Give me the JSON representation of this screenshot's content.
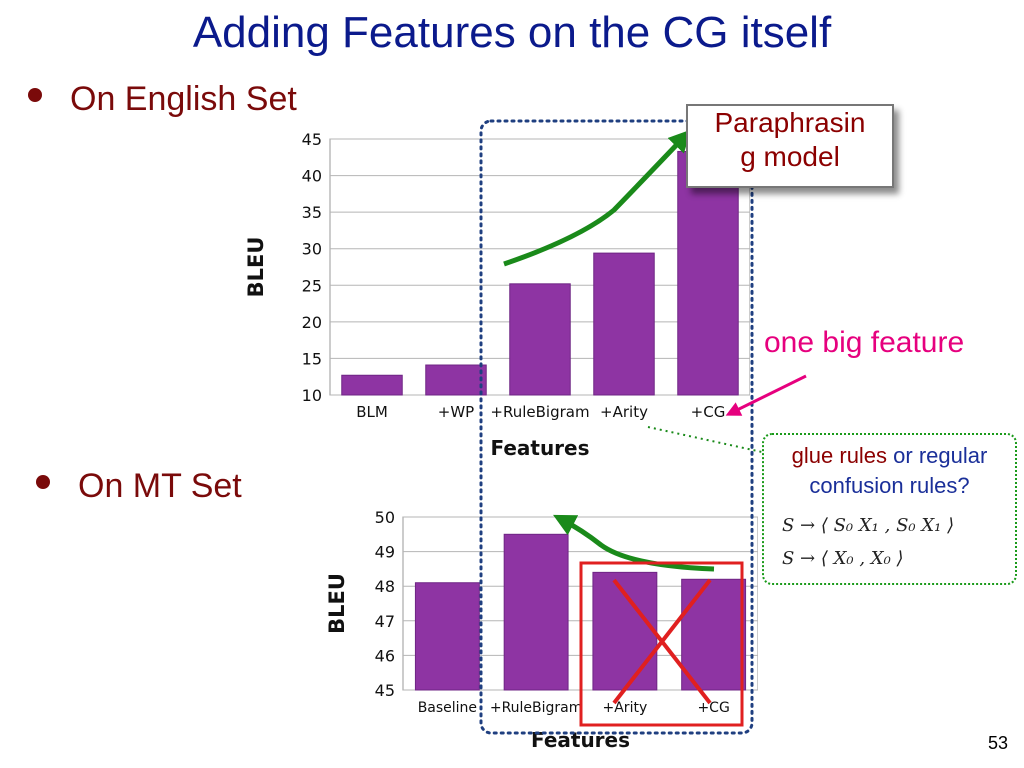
{
  "slide": {
    "title": "Adding Features on the CG itself",
    "bullet1": "On English Set",
    "bullet2": "On MT Set",
    "page_number": "53",
    "paraphrasing_box": [
      "Paraphrasin",
      "g model"
    ],
    "annotation_one_big": "one big feature",
    "glue_question": {
      "part_red": "glue rules",
      "part_blue_1": " or regular",
      "part_blue_2": "confusion rules?"
    },
    "glue_rules": [
      "S  →  ⟨ S₀ X₁ , S₀ X₁ ⟩",
      "S  →  ⟨ X₀ , X₀ ⟩"
    ]
  },
  "chart_data": [
    {
      "type": "bar",
      "categories": [
        "BLM",
        "+WP",
        "+RuleBigram",
        "+Arity",
        "+CG"
      ],
      "values": [
        12.7,
        14.1,
        25.2,
        29.4,
        43.3
      ],
      "xlabel": "Features",
      "ylabel": "BLEU",
      "ylim": [
        10,
        45
      ],
      "yticks": [
        10,
        15,
        20,
        25,
        30,
        35,
        40,
        45
      ],
      "grid": true,
      "bar_color": "#8e34a3"
    },
    {
      "type": "bar",
      "categories": [
        "Baseline",
        "+RuleBigram",
        "+Arity",
        "+CG"
      ],
      "values": [
        48.1,
        49.5,
        48.4,
        48.2
      ],
      "xlabel": "Features",
      "ylabel": "BLEU",
      "ylim": [
        45,
        50
      ],
      "yticks": [
        45,
        46,
        47,
        48,
        49,
        50
      ],
      "grid": true,
      "bar_color": "#8e34a3"
    }
  ]
}
